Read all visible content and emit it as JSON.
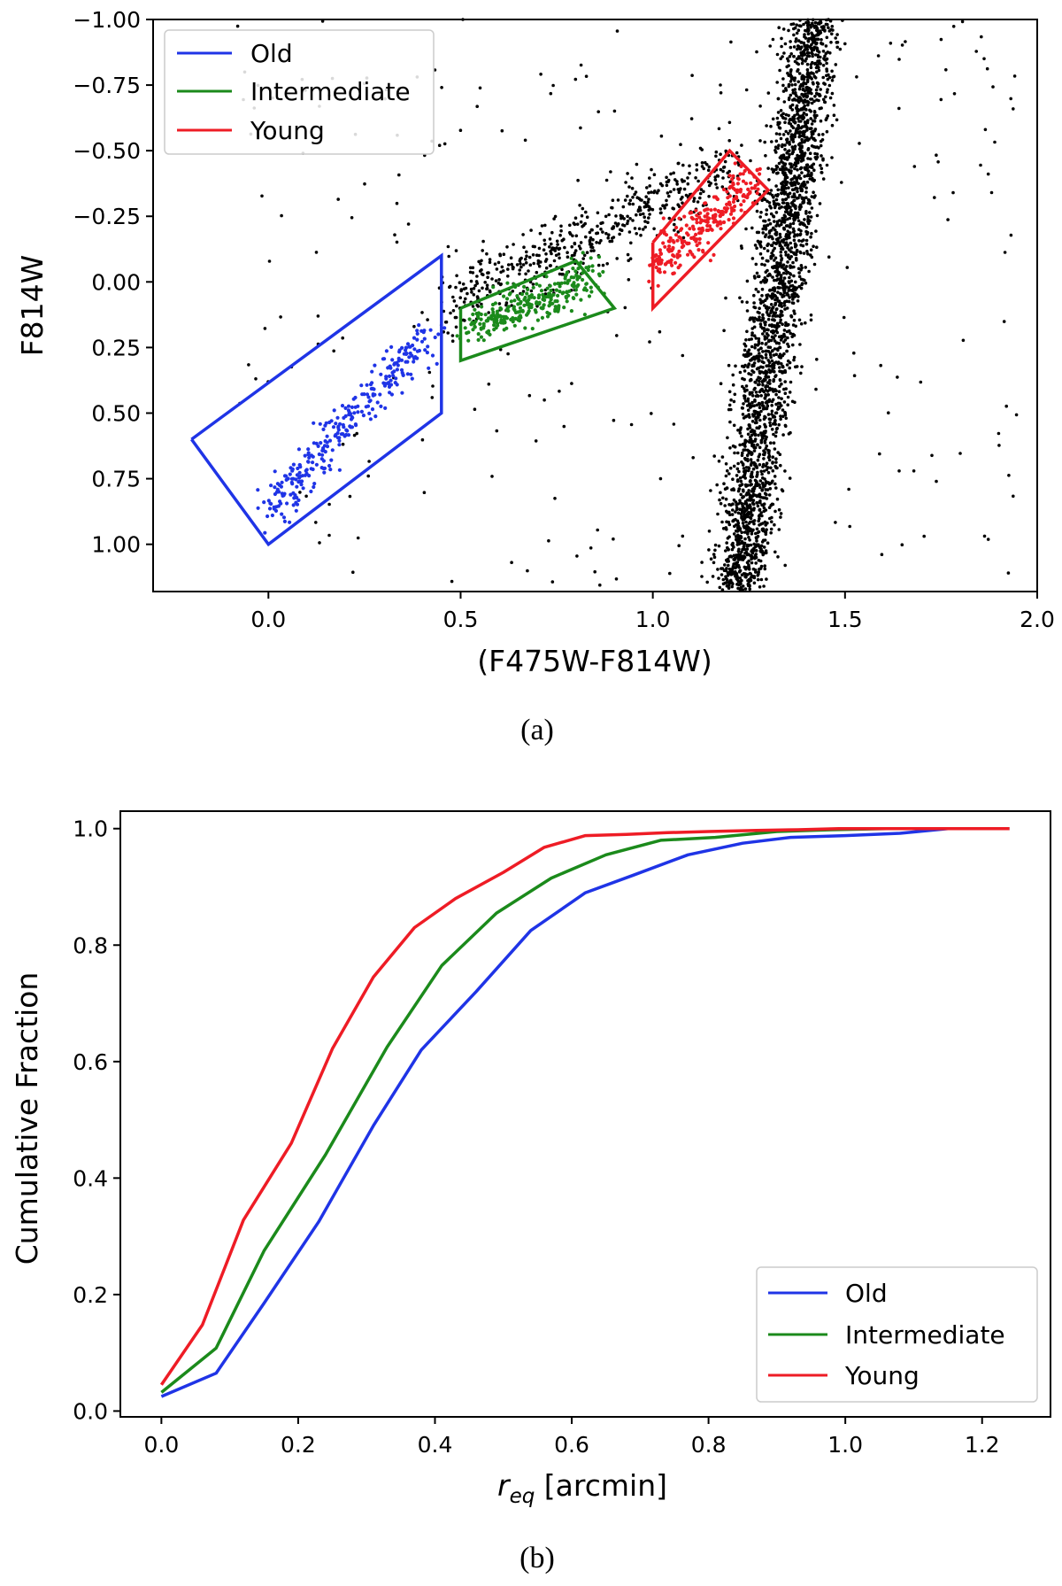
{
  "chart_data": [
    {
      "type": "scatter",
      "panel_caption": "(a)",
      "xlabel": "(F475W-F814W)",
      "ylabel": "F814W",
      "xlim": [
        -0.3,
        2.0
      ],
      "ylim": [
        1.18,
        -1.0
      ],
      "y_inverted": true,
      "xticks": [
        "0.0",
        "0.5",
        "1.0",
        "1.5",
        "2.0"
      ],
      "xtick_values": [
        0.0,
        0.5,
        1.0,
        1.5,
        2.0
      ],
      "yticks": [
        "−1.00",
        "−0.75",
        "−0.50",
        "−0.25",
        "0.00",
        "0.25",
        "0.50",
        "0.75",
        "1.00"
      ],
      "ytick_values": [
        -1.0,
        -0.75,
        -0.5,
        -0.25,
        0.0,
        0.25,
        0.5,
        0.75,
        1.0
      ],
      "legend_location": "top-left",
      "point_color": "#000000",
      "regions": [
        {
          "name": "Old",
          "color": "#1f34e6",
          "polygon": [
            [
              -0.2,
              0.6
            ],
            [
              0.45,
              -0.1
            ],
            [
              0.45,
              0.5
            ],
            [
              0.0,
              1.0
            ],
            [
              -0.2,
              0.6
            ]
          ],
          "points_sequence": {
            "x_start": 0.0,
            "x_end": 0.42,
            "y_start": 0.88,
            "y_end": 0.18,
            "count": 300
          }
        },
        {
          "name": "Intermediate",
          "color": "#1b8a1b",
          "polygon": [
            [
              0.5,
              0.1
            ],
            [
              0.8,
              -0.08
            ],
            [
              0.9,
              0.1
            ],
            [
              0.5,
              0.3
            ],
            [
              0.5,
              0.1
            ]
          ],
          "points_sequence": {
            "x_start": 0.52,
            "x_end": 0.85,
            "y_start": 0.18,
            "y_end": -0.02,
            "count": 280
          }
        },
        {
          "name": "Young",
          "color": "#ee1c25",
          "polygon": [
            [
              1.0,
              -0.15
            ],
            [
              1.2,
              -0.5
            ],
            [
              1.3,
              -0.35
            ],
            [
              1.0,
              0.1
            ],
            [
              1.0,
              -0.15
            ]
          ],
          "points_sequence": {
            "x_start": 1.0,
            "x_end": 1.27,
            "y_start": -0.05,
            "y_end": -0.4,
            "count": 260
          }
        }
      ],
      "background_features": {
        "rgb_branch": {
          "top": [
            1.42,
            -1.0
          ],
          "bottom": [
            1.22,
            1.18
          ],
          "count": 2600
        },
        "blue_loop": {
          "from": [
            0.45,
            0.1
          ],
          "to": [
            1.22,
            -0.45
          ],
          "count": 520
        },
        "scattered": {
          "count": 260
        }
      }
    },
    {
      "type": "line",
      "panel_caption": "(b)",
      "xlabel_symbol": "r",
      "xlabel_sub": "eq",
      "xlabel_unit": " [arcmin]",
      "ylabel": "Cumulative Fraction",
      "xlim": [
        -0.06,
        1.3
      ],
      "ylim": [
        -0.01,
        1.03
      ],
      "xticks": [
        "0.0",
        "0.2",
        "0.4",
        "0.6",
        "0.8",
        "1.0",
        "1.2"
      ],
      "xtick_values": [
        0.0,
        0.2,
        0.4,
        0.6,
        0.8,
        1.0,
        1.2
      ],
      "yticks": [
        "0.0",
        "0.2",
        "0.4",
        "0.6",
        "0.8",
        "1.0"
      ],
      "ytick_values": [
        0.0,
        0.2,
        0.4,
        0.6,
        0.8,
        1.0
      ],
      "legend_location": "bottom-right",
      "series": [
        {
          "name": "Old",
          "color": "#1f34e6",
          "x": [
            0.0,
            0.08,
            0.15,
            0.23,
            0.31,
            0.38,
            0.46,
            0.54,
            0.62,
            0.69,
            0.77,
            0.85,
            0.92,
            1.0,
            1.08,
            1.15,
            1.24
          ],
          "y": [
            0.025,
            0.065,
            0.185,
            0.325,
            0.49,
            0.62,
            0.72,
            0.825,
            0.89,
            0.92,
            0.955,
            0.975,
            0.985,
            0.988,
            0.992,
            1.0,
            1.0
          ]
        },
        {
          "name": "Intermediate",
          "color": "#1b8a1b",
          "x": [
            0.0,
            0.08,
            0.15,
            0.24,
            0.33,
            0.41,
            0.49,
            0.57,
            0.65,
            0.73,
            0.81,
            0.9,
            0.98,
            1.06,
            1.15,
            1.24
          ],
          "y": [
            0.032,
            0.108,
            0.275,
            0.44,
            0.625,
            0.765,
            0.855,
            0.915,
            0.955,
            0.98,
            0.985,
            0.995,
            0.998,
            1.0,
            1.0,
            1.0
          ]
        },
        {
          "name": "Young",
          "color": "#ee1c25",
          "x": [
            0.0,
            0.06,
            0.12,
            0.19,
            0.25,
            0.31,
            0.37,
            0.43,
            0.5,
            0.56,
            0.62,
            0.68,
            0.74,
            0.8,
            0.87,
            0.93,
            0.99,
            1.05,
            1.11,
            1.18,
            1.24
          ],
          "y": [
            0.045,
            0.148,
            0.328,
            0.46,
            0.622,
            0.745,
            0.83,
            0.88,
            0.925,
            0.968,
            0.988,
            0.99,
            0.993,
            0.995,
            0.997,
            0.998,
            1.0,
            1.0,
            1.0,
            1.0,
            1.0
          ]
        }
      ]
    }
  ]
}
